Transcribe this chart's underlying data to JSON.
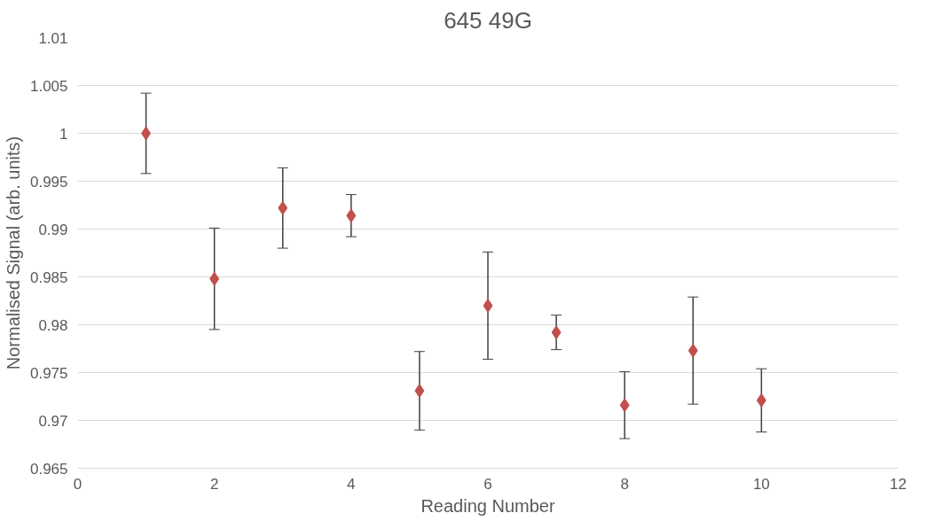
{
  "chart_data": {
    "type": "scatter",
    "title": "645 49G",
    "xlabel": "Reading Number",
    "ylabel": "Normalised Signal (arb. units)",
    "x": [
      1,
      2,
      3,
      4,
      5,
      6,
      7,
      8,
      9,
      10
    ],
    "values": [
      1.0,
      0.9848,
      0.9922,
      0.9914,
      0.9731,
      0.982,
      0.9792,
      0.9716,
      0.9773,
      0.9721
    ],
    "errors": [
      0.0042,
      0.0053,
      0.0042,
      0.0022,
      0.0041,
      0.0056,
      0.0018,
      0.0035,
      0.0056,
      0.0033
    ],
    "color": "#c0504d",
    "marker": "diamond",
    "grid": "y",
    "xlim": [
      0,
      12
    ],
    "xticks": [
      0,
      2,
      4,
      6,
      8,
      10,
      12
    ],
    "ylim": [
      0.965,
      1.01
    ],
    "yticks": [
      0.965,
      0.97,
      0.975,
      0.98,
      0.985,
      0.99,
      0.995,
      1,
      1.005,
      1.01
    ]
  }
}
